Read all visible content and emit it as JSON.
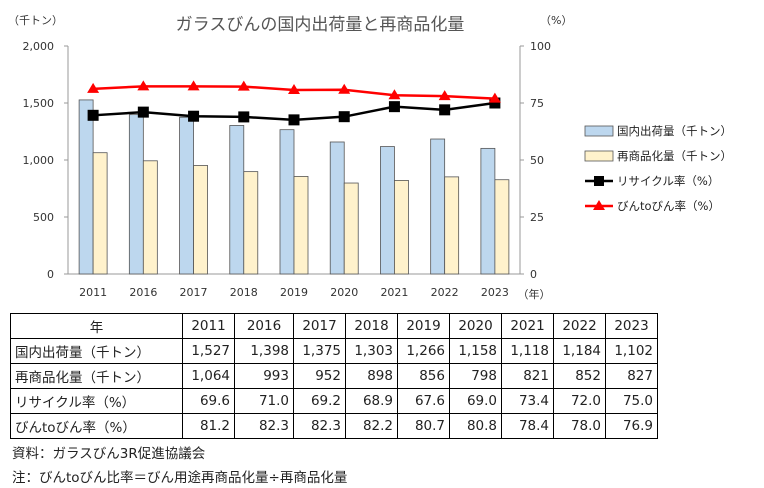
{
  "chart_data": {
    "type": "bar",
    "title": "ガラスびんの国内出荷量と再商品化量",
    "categories": [
      "2011",
      "2016",
      "2017",
      "2018",
      "2019",
      "2020",
      "2021",
      "2022",
      "2023"
    ],
    "x_unit": "（年）",
    "y_left": {
      "label": "（千トン）",
      "range": [
        0,
        2000
      ],
      "ticks": [
        "0",
        "500",
        "1,000",
        "1,500",
        "2,000"
      ]
    },
    "y_right": {
      "label": "（%）",
      "range": [
        0,
        100
      ],
      "ticks": [
        "0",
        "25",
        "50",
        "75",
        "100"
      ]
    },
    "grid": false,
    "legend_position": "right",
    "series": [
      {
        "name": "国内出荷量（千トン）",
        "type": "bar",
        "axis": "left",
        "color": "#bdd7ee",
        "values": [
          1527,
          1398,
          1375,
          1303,
          1266,
          1158,
          1118,
          1184,
          1102
        ]
      },
      {
        "name": "再商品化量（千トン）",
        "type": "bar",
        "axis": "left",
        "color": "#fff2cc",
        "values": [
          1064,
          993,
          952,
          898,
          856,
          798,
          821,
          852,
          827
        ]
      },
      {
        "name": "リサイクル率（%）",
        "type": "line",
        "axis": "right",
        "color": "#000000",
        "marker": "square",
        "values": [
          69.6,
          71.0,
          69.2,
          68.9,
          67.6,
          69.0,
          73.4,
          72.0,
          75.0
        ]
      },
      {
        "name": "びんtoびん率（%）",
        "type": "line",
        "axis": "right",
        "color": "#ff0000",
        "marker": "triangle",
        "values": [
          81.2,
          82.3,
          82.3,
          82.2,
          80.7,
          80.8,
          78.4,
          78.0,
          76.9
        ]
      }
    ]
  },
  "table": {
    "header": [
      "年",
      "2011",
      "2016",
      "2017",
      "2018",
      "2019",
      "2020",
      "2021",
      "2022",
      "2023"
    ],
    "rows": [
      {
        "label": "国内出荷量（千トン）",
        "cells": [
          "1,527",
          "1,398",
          "1,375",
          "1,303",
          "1,266",
          "1,158",
          "1,118",
          "1,184",
          "1,102"
        ]
      },
      {
        "label": "再商品化量（千トン）",
        "cells": [
          "1,064",
          "993",
          "952",
          "898",
          "856",
          "798",
          "821",
          "852",
          "827"
        ]
      },
      {
        "label": "リサイクル率（%）",
        "cells": [
          "69.6",
          "71.0",
          "69.2",
          "68.9",
          "67.6",
          "69.0",
          "73.4",
          "72.0",
          "75.0"
        ]
      },
      {
        "label": "びんtoびん率（%）",
        "cells": [
          "81.2",
          "82.3",
          "82.3",
          "82.2",
          "80.7",
          "80.8",
          "78.4",
          "78.0",
          "76.9"
        ]
      }
    ]
  },
  "notes": {
    "source": "資料：ガラスびん3R促進協議会",
    "note": "注：びんtoびん比率＝びん用途再商品化量÷再商品化量"
  }
}
